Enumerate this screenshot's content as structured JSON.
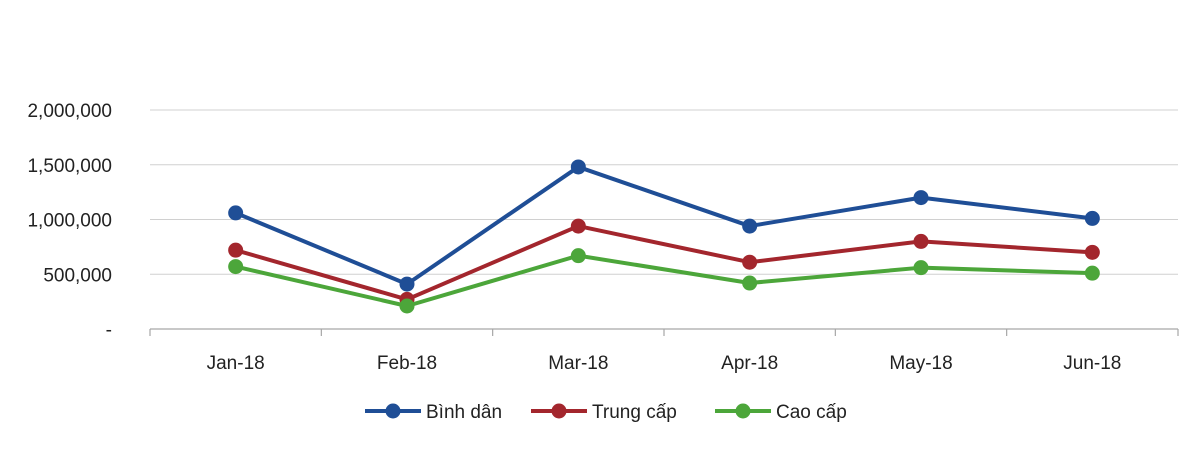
{
  "chart_data": {
    "type": "line",
    "title": "",
    "xlabel": "",
    "ylabel": "",
    "categories": [
      "Jan-18",
      "Feb-18",
      "Mar-18",
      "Apr-18",
      "May-18",
      "Jun-18"
    ],
    "ylim": [
      0,
      2000000
    ],
    "yticks": [
      0,
      500000,
      1000000,
      1500000,
      2000000
    ],
    "ytick_labels": [
      "-",
      "500,000",
      "1,000,000",
      "1,500,000",
      "2,000,000"
    ],
    "grid": true,
    "legend_position": "bottom",
    "series": [
      {
        "name": "Bình dân",
        "color": "#1f4e96",
        "values": [
          1060000,
          410000,
          1480000,
          940000,
          1200000,
          1010000
        ]
      },
      {
        "name": "Trung cấp",
        "color": "#a3262d",
        "values": [
          720000,
          270000,
          940000,
          610000,
          800000,
          700000
        ]
      },
      {
        "name": "Cao cấp",
        "color": "#4ca63a",
        "values": [
          570000,
          210000,
          670000,
          420000,
          560000,
          510000
        ]
      }
    ]
  }
}
